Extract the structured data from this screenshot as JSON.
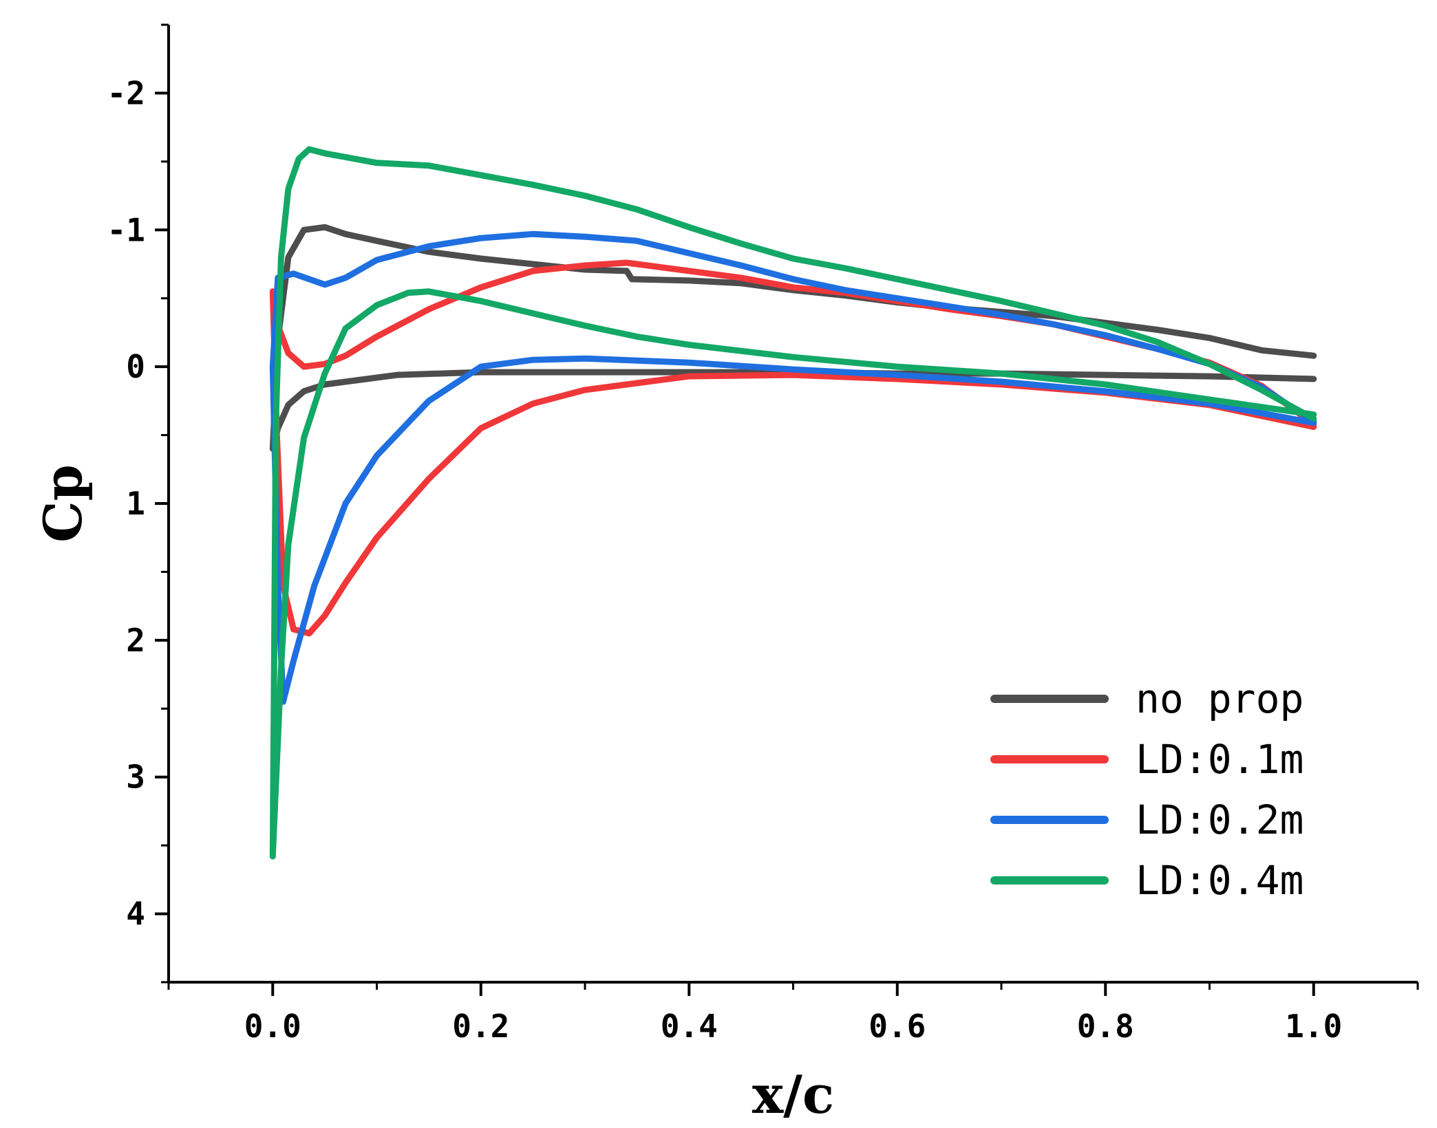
{
  "chart_data": {
    "type": "line",
    "title": "",
    "xlabel": "x/c",
    "ylabel": "Cp",
    "xlim": [
      -0.1,
      1.1
    ],
    "ylim": [
      4.5,
      -2.5
    ],
    "y_inverted": true,
    "grid": false,
    "legend_position": "bottom-right",
    "x_ticks": [
      0.0,
      0.2,
      0.4,
      0.6,
      0.8,
      1.0
    ],
    "x_tick_labels": [
      "0.0",
      "0.2",
      "0.4",
      "0.6",
      "0.8",
      "1.0"
    ],
    "y_ticks": [
      -2,
      -1,
      0,
      1,
      2,
      3,
      4
    ],
    "y_tick_labels": [
      "-2",
      "-1",
      "0",
      "1",
      "2",
      "3",
      "4"
    ],
    "series": [
      {
        "name": "no prop",
        "color": "#4d4d4d",
        "upper": [
          [
            0.0,
            0.6
          ],
          [
            0.005,
            -0.2
          ],
          [
            0.015,
            -0.8
          ],
          [
            0.03,
            -1.0
          ],
          [
            0.05,
            -1.02
          ],
          [
            0.07,
            -0.97
          ],
          [
            0.1,
            -0.92
          ],
          [
            0.15,
            -0.84
          ],
          [
            0.2,
            -0.79
          ],
          [
            0.25,
            -0.75
          ],
          [
            0.3,
            -0.71
          ],
          [
            0.34,
            -0.7
          ],
          [
            0.345,
            -0.64
          ],
          [
            0.4,
            -0.63
          ],
          [
            0.45,
            -0.61
          ],
          [
            0.5,
            -0.56
          ],
          [
            0.55,
            -0.52
          ],
          [
            0.6,
            -0.47
          ],
          [
            0.65,
            -0.43
          ],
          [
            0.7,
            -0.4
          ],
          [
            0.75,
            -0.37
          ],
          [
            0.8,
            -0.32
          ],
          [
            0.85,
            -0.27
          ],
          [
            0.9,
            -0.21
          ],
          [
            0.95,
            -0.12
          ],
          [
            1.0,
            -0.08
          ]
        ],
        "lower": [
          [
            0.0,
            0.6
          ],
          [
            0.005,
            0.45
          ],
          [
            0.015,
            0.28
          ],
          [
            0.03,
            0.18
          ],
          [
            0.05,
            0.13
          ],
          [
            0.08,
            0.1
          ],
          [
            0.12,
            0.06
          ],
          [
            0.2,
            0.04
          ],
          [
            0.3,
            0.04
          ],
          [
            0.4,
            0.04
          ],
          [
            0.5,
            0.04
          ],
          [
            0.6,
            0.05
          ],
          [
            0.7,
            0.05
          ],
          [
            0.8,
            0.06
          ],
          [
            0.9,
            0.07
          ],
          [
            1.0,
            0.09
          ]
        ]
      },
      {
        "name": "LD:0.1m",
        "color": "#f0373a",
        "upper": [
          [
            0.0,
            -0.55
          ],
          [
            0.005,
            -0.3
          ],
          [
            0.015,
            -0.1
          ],
          [
            0.03,
            0.0
          ],
          [
            0.05,
            -0.02
          ],
          [
            0.07,
            -0.08
          ],
          [
            0.1,
            -0.22
          ],
          [
            0.15,
            -0.42
          ],
          [
            0.2,
            -0.58
          ],
          [
            0.25,
            -0.7
          ],
          [
            0.3,
            -0.74
          ],
          [
            0.34,
            -0.76
          ],
          [
            0.4,
            -0.7
          ],
          [
            0.45,
            -0.65
          ],
          [
            0.5,
            -0.58
          ],
          [
            0.55,
            -0.54
          ],
          [
            0.6,
            -0.48
          ],
          [
            0.65,
            -0.42
          ],
          [
            0.7,
            -0.37
          ],
          [
            0.75,
            -0.31
          ],
          [
            0.8,
            -0.22
          ],
          [
            0.85,
            -0.13
          ],
          [
            0.9,
            -0.03
          ],
          [
            0.95,
            0.14
          ],
          [
            1.0,
            0.42
          ]
        ],
        "lower": [
          [
            0.0,
            -0.55
          ],
          [
            0.004,
            0.5
          ],
          [
            0.01,
            1.6
          ],
          [
            0.02,
            1.92
          ],
          [
            0.035,
            1.95
          ],
          [
            0.05,
            1.82
          ],
          [
            0.07,
            1.58
          ],
          [
            0.1,
            1.25
          ],
          [
            0.15,
            0.82
          ],
          [
            0.2,
            0.45
          ],
          [
            0.25,
            0.27
          ],
          [
            0.3,
            0.17
          ],
          [
            0.4,
            0.07
          ],
          [
            0.5,
            0.06
          ],
          [
            0.6,
            0.09
          ],
          [
            0.7,
            0.13
          ],
          [
            0.8,
            0.19
          ],
          [
            0.9,
            0.28
          ],
          [
            1.0,
            0.44
          ]
        ]
      },
      {
        "name": "LD:0.2m",
        "color": "#1f6fe0",
        "upper": [
          [
            0.0,
            0.0
          ],
          [
            0.005,
            -0.65
          ],
          [
            0.02,
            -0.68
          ],
          [
            0.05,
            -0.6
          ],
          [
            0.07,
            -0.65
          ],
          [
            0.1,
            -0.78
          ],
          [
            0.15,
            -0.88
          ],
          [
            0.2,
            -0.94
          ],
          [
            0.25,
            -0.97
          ],
          [
            0.3,
            -0.95
          ],
          [
            0.35,
            -0.92
          ],
          [
            0.4,
            -0.83
          ],
          [
            0.45,
            -0.74
          ],
          [
            0.5,
            -0.64
          ],
          [
            0.55,
            -0.56
          ],
          [
            0.6,
            -0.5
          ],
          [
            0.65,
            -0.44
          ],
          [
            0.7,
            -0.38
          ],
          [
            0.75,
            -0.31
          ],
          [
            0.8,
            -0.23
          ],
          [
            0.85,
            -0.13
          ],
          [
            0.9,
            -0.02
          ],
          [
            0.95,
            0.15
          ],
          [
            1.0,
            0.4
          ]
        ],
        "lower": [
          [
            0.0,
            0.0
          ],
          [
            0.005,
            1.6
          ],
          [
            0.01,
            2.45
          ],
          [
            0.02,
            2.15
          ],
          [
            0.04,
            1.6
          ],
          [
            0.07,
            1.0
          ],
          [
            0.1,
            0.65
          ],
          [
            0.15,
            0.25
          ],
          [
            0.2,
            0.0
          ],
          [
            0.25,
            -0.05
          ],
          [
            0.3,
            -0.06
          ],
          [
            0.4,
            -0.03
          ],
          [
            0.5,
            0.02
          ],
          [
            0.6,
            0.06
          ],
          [
            0.7,
            0.11
          ],
          [
            0.8,
            0.18
          ],
          [
            0.9,
            0.27
          ],
          [
            1.0,
            0.41
          ]
        ]
      },
      {
        "name": "LD:0.4m",
        "color": "#13a866",
        "upper": [
          [
            0.0,
            3.58
          ],
          [
            0.003,
            0.4
          ],
          [
            0.008,
            -0.8
          ],
          [
            0.015,
            -1.3
          ],
          [
            0.025,
            -1.52
          ],
          [
            0.035,
            -1.59
          ],
          [
            0.05,
            -1.56
          ],
          [
            0.1,
            -1.49
          ],
          [
            0.15,
            -1.47
          ],
          [
            0.2,
            -1.4
          ],
          [
            0.25,
            -1.33
          ],
          [
            0.3,
            -1.25
          ],
          [
            0.35,
            -1.15
          ],
          [
            0.4,
            -1.02
          ],
          [
            0.45,
            -0.9
          ],
          [
            0.5,
            -0.79
          ],
          [
            0.55,
            -0.72
          ],
          [
            0.6,
            -0.64
          ],
          [
            0.65,
            -0.56
          ],
          [
            0.7,
            -0.48
          ],
          [
            0.75,
            -0.39
          ],
          [
            0.8,
            -0.3
          ],
          [
            0.85,
            -0.18
          ],
          [
            0.9,
            -0.02
          ],
          [
            0.95,
            0.17
          ],
          [
            1.0,
            0.38
          ]
        ],
        "lower": [
          [
            0.0,
            3.58
          ],
          [
            0.008,
            2.2
          ],
          [
            0.015,
            1.3
          ],
          [
            0.03,
            0.52
          ],
          [
            0.05,
            0.05
          ],
          [
            0.07,
            -0.28
          ],
          [
            0.1,
            -0.45
          ],
          [
            0.13,
            -0.54
          ],
          [
            0.15,
            -0.55
          ],
          [
            0.2,
            -0.48
          ],
          [
            0.25,
            -0.39
          ],
          [
            0.3,
            -0.3
          ],
          [
            0.35,
            -0.22
          ],
          [
            0.4,
            -0.16
          ],
          [
            0.5,
            -0.07
          ],
          [
            0.6,
            0.0
          ],
          [
            0.7,
            0.05
          ],
          [
            0.8,
            0.13
          ],
          [
            0.9,
            0.24
          ],
          [
            1.0,
            0.35
          ]
        ]
      }
    ]
  }
}
